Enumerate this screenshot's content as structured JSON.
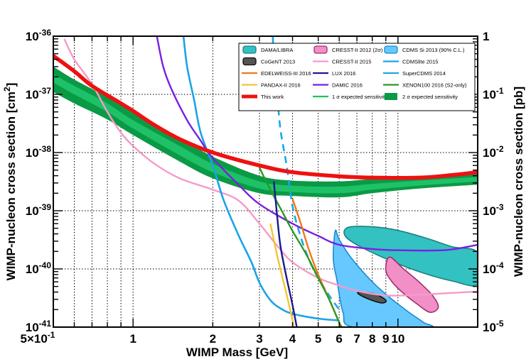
{
  "chart_data": {
    "type": "line",
    "xscale": "log",
    "yscale": "log",
    "xlim": [
      0.5,
      20
    ],
    "ylim_left": [
      1e-41,
      1e-36
    ],
    "ylim_right": [
      1e-05,
      1
    ],
    "xlabel": "WIMP Mass [GeV]",
    "ylabel_left": "WIMP-nucleon cross section [cm",
    "ylabel_left_sup": "2",
    "ylabel_left_end": "]",
    "ylabel_right": "WIMP-nucleon cross section [pb]",
    "x_ticks": [
      {
        "v": 0.5,
        "label": "5×10",
        "sup": "-1"
      },
      {
        "v": 1,
        "label": "1"
      },
      {
        "v": 2,
        "label": "2"
      },
      {
        "v": 3,
        "label": "3"
      },
      {
        "v": 4,
        "label": "4"
      },
      {
        "v": 5,
        "label": "5"
      },
      {
        "v": 6,
        "label": "6"
      },
      {
        "v": 7,
        "label": "7"
      },
      {
        "v": 8,
        "label": "8"
      },
      {
        "v": 9,
        "label": "9"
      },
      {
        "v": 10,
        "label": "10"
      }
    ],
    "y_ticks_left": [
      {
        "v": 1e-36,
        "base": "10",
        "sup": "-36"
      },
      {
        "v": 1e-37,
        "base": "10",
        "sup": "-37"
      },
      {
        "v": 1e-38,
        "base": "10",
        "sup": "-38"
      },
      {
        "v": 1e-39,
        "base": "10",
        "sup": "-39"
      },
      {
        "v": 1e-40,
        "base": "10",
        "sup": "-40"
      },
      {
        "v": 1e-41,
        "base": "10",
        "sup": "-41"
      }
    ],
    "y_ticks_right": [
      {
        "v": 1e-36,
        "base": "1"
      },
      {
        "v": 1e-37,
        "base": "10",
        "sup": "-1"
      },
      {
        "v": 1e-38,
        "base": "10",
        "sup": "-2"
      },
      {
        "v": 1e-39,
        "base": "10",
        "sup": "-3"
      },
      {
        "v": 1e-40,
        "base": "10",
        "sup": "-4"
      },
      {
        "v": 1e-41,
        "base": "10",
        "sup": "-5"
      }
    ],
    "colors": {
      "dama": "#33c1c1",
      "cogent": "#555555",
      "cresst2012": "#f28fc7",
      "cdmssi": "#66c8ff",
      "cresst2015": "#f59ac9",
      "cdmslite": "#1aa3e8",
      "edelweiss": "#f07818",
      "lux": "#1a1a90",
      "supercdms": "#19a8e6",
      "pandax": "#f2c533",
      "damic": "#7a1fe0",
      "xenon100": "#2a9a22",
      "thiswork": "#ee1111",
      "band1": "#1ec167",
      "band2": "#0a9a45"
    },
    "regions": [
      {
        "id": "dama",
        "name": "DAMA/LIBRA",
        "color": "#33c1c1",
        "edge": "#1f8080",
        "points": [
          [
            6.5,
            5.2e-40
          ],
          [
            8,
            5.3e-40
          ],
          [
            10,
            4.6e-40
          ],
          [
            13,
            3.3e-40
          ],
          [
            16,
            2.4e-40
          ],
          [
            20,
            1.9e-40
          ],
          [
            20,
            5.5e-41
          ],
          [
            16,
            6.2e-41
          ],
          [
            12,
            9e-41
          ],
          [
            9,
            1.5e-40
          ],
          [
            7,
            2.6e-40
          ],
          [
            6.3,
            3.8e-40
          ]
        ]
      },
      {
        "id": "cresst2012",
        "name": "CRESST-II 2012 (2σ)",
        "color": "#f28fc7",
        "edge": "#a0306a",
        "points": [
          [
            9.3,
            1.6e-40
          ],
          [
            10.5,
            1e-40
          ],
          [
            12,
            6e-41
          ],
          [
            13.5,
            3.5e-41
          ],
          [
            14.2,
            2.2e-41
          ],
          [
            13.2,
            1.8e-41
          ],
          [
            11.8,
            2.5e-41
          ],
          [
            10.5,
            3.8e-41
          ],
          [
            9.5,
            6e-41
          ],
          [
            9,
            9.5e-41
          ]
        ]
      },
      {
        "id": "cdmssi",
        "name": "CDMS Si 2013 (90% C.L.)",
        "color": "#66c8ff",
        "edge": "#1a8ad0",
        "points": [
          [
            5.8,
            4.5e-40
          ],
          [
            6,
            3.2e-40
          ],
          [
            6.7,
            1.5e-40
          ],
          [
            8,
            6e-41
          ],
          [
            9.5,
            3e-41
          ],
          [
            11,
            1.8e-41
          ],
          [
            12.5,
            1.2e-41
          ],
          [
            13,
            1e-41
          ],
          [
            6.8,
            1e-41
          ],
          [
            6.2,
            1.8e-41
          ],
          [
            5.9,
            6e-41
          ],
          [
            5.7,
            1.5e-40
          ]
        ]
      },
      {
        "id": "cogent",
        "name": "CoGeNT 2013",
        "color": "#555555",
        "edge": "#111111",
        "points": [
          [
            7.2,
            4e-41
          ],
          [
            8.2,
            3.7e-41
          ],
          [
            9,
            2.9e-41
          ],
          [
            8.7,
            2.6e-41
          ],
          [
            7.8,
            3e-41
          ],
          [
            7.1,
            3.7e-41
          ]
        ]
      }
    ],
    "series": [
      {
        "id": "cresst2015",
        "name": "CRESST-II 2015",
        "color": "#f59ac9",
        "width": 2.4,
        "dash": "",
        "points": [
          [
            0.55,
            9e-37
          ],
          [
            0.6,
            4e-37
          ],
          [
            0.7,
            1.5e-37
          ],
          [
            0.8,
            5e-38
          ],
          [
            0.9,
            2.2e-38
          ],
          [
            1.0,
            1.3e-38
          ],
          [
            1.2,
            6.5e-39
          ],
          [
            1.5,
            3.6e-39
          ],
          [
            2.0,
            2.3e-39
          ],
          [
            2.5,
            1.5e-39
          ],
          [
            3.0,
            6e-40
          ],
          [
            3.5,
            2.5e-40
          ],
          [
            4.0,
            1.3e-40
          ],
          [
            5.0,
            7e-41
          ],
          [
            6.0,
            5.2e-41
          ],
          [
            7.0,
            4.2e-41
          ],
          [
            9.0,
            3.5e-41
          ],
          [
            12,
            3.6e-41
          ],
          [
            20,
            4.1e-41
          ]
        ]
      },
      {
        "id": "cdmslite",
        "name": "CDMSlite 2015",
        "color": "#1aa3e8",
        "width": 2.6,
        "dash": "",
        "points": [
          [
            1.55,
            1e-36
          ],
          [
            1.6,
            3e-37
          ],
          [
            1.7,
            8e-38
          ],
          [
            1.8,
            2.2e-38
          ],
          [
            2.0,
            6e-39
          ],
          [
            2.2,
            1.5e-39
          ],
          [
            2.5,
            3.8e-40
          ],
          [
            2.8,
            1.3e-40
          ],
          [
            3.0,
            5.8e-41
          ],
          [
            3.3,
            2.9e-41
          ],
          [
            3.6,
            2.1e-41
          ],
          [
            4.0,
            1.7e-41
          ],
          [
            5.0,
            1.4e-41
          ],
          [
            6.0,
            1.3e-41
          ]
        ]
      },
      {
        "id": "supercdms",
        "name": "SuperCDMS 2014",
        "color": "#19a8e6",
        "width": 2.6,
        "dash": "10,7",
        "points": [
          [
            3.37,
            1e-36
          ],
          [
            3.4,
            4e-37
          ],
          [
            3.5,
            1e-37
          ],
          [
            3.6,
            2.5e-38
          ],
          [
            3.8,
            6e-39
          ],
          [
            4.0,
            1.2e-39
          ],
          [
            4.3,
            3.5e-40
          ],
          [
            4.7,
            1.2e-40
          ],
          [
            5.3,
            4.5e-41
          ],
          [
            6,
            2e-41
          ]
        ]
      },
      {
        "id": "damic",
        "name": "DAMIC 2016",
        "color": "#7a1fe0",
        "width": 2.4,
        "dash": "",
        "points": [
          [
            1.23,
            1e-36
          ],
          [
            1.3,
            3e-37
          ],
          [
            1.4,
            1.2e-37
          ],
          [
            1.6,
            3.6e-38
          ],
          [
            1.8,
            1.6e-38
          ],
          [
            2.0,
            8e-39
          ],
          [
            2.5,
            2.8e-39
          ],
          [
            3.0,
            1.3e-39
          ],
          [
            4.0,
            6e-40
          ],
          [
            5.0,
            3.7e-40
          ],
          [
            6.0,
            2.6e-40
          ],
          [
            8,
            2.2e-40
          ],
          [
            10,
            2.1e-40
          ],
          [
            15,
            2.1e-40
          ],
          [
            20,
            2.6e-40
          ]
        ]
      },
      {
        "id": "edelweiss",
        "name": "EDELWEISS-III 2016",
        "color": "#f07818",
        "width": 2.4,
        "dash": "",
        "points": [
          [
            4.0,
            1.6e-39
          ],
          [
            4.3,
            6e-40
          ],
          [
            4.6,
            2.2e-40
          ],
          [
            5.0,
            8e-41
          ],
          [
            5.5,
            3e-41
          ],
          [
            6.0,
            1.2e-41
          ],
          [
            6.1,
            1e-41
          ]
        ]
      },
      {
        "id": "xenon100",
        "name": "XENON100 2016 (S2-only)",
        "color": "#2a9a22",
        "width": 2.4,
        "dash": "",
        "points": [
          [
            3.0,
            5.5e-39
          ],
          [
            3.3,
            2.3e-39
          ],
          [
            3.6,
            1.1e-39
          ],
          [
            4.0,
            4.5e-40
          ],
          [
            4.5,
            1.8e-40
          ],
          [
            5.0,
            7e-41
          ],
          [
            5.5,
            3e-41
          ],
          [
            6.0,
            1.2e-41
          ],
          [
            6.15,
            1e-41
          ]
        ]
      },
      {
        "id": "lux",
        "name": "LUX 2016",
        "color": "#1a1a90",
        "width": 2.4,
        "dash": "",
        "points": [
          [
            3.4,
            3.2e-39
          ],
          [
            3.5,
            8e-40
          ],
          [
            3.6,
            2.5e-40
          ],
          [
            3.8,
            7e-41
          ],
          [
            4.0,
            2.4e-41
          ],
          [
            4.15,
            1e-41
          ]
        ]
      },
      {
        "id": "pandax",
        "name": "PANDAX-II 2016",
        "color": "#f2c533",
        "width": 2.4,
        "dash": "",
        "points": [
          [
            3.3,
            6e-40
          ],
          [
            3.5,
            1.7e-40
          ],
          [
            3.7,
            6e-41
          ],
          [
            3.9,
            2.2e-41
          ],
          [
            4.05,
            1e-41
          ]
        ]
      },
      {
        "id": "thiswork",
        "name": "This work",
        "color": "#ee1111",
        "width": 5.5,
        "dash": "",
        "points": [
          [
            0.5,
            4.6e-37
          ],
          [
            0.6,
            2.5e-37
          ],
          [
            0.7,
            1.4e-37
          ],
          [
            0.9,
            7e-38
          ],
          [
            1.0,
            5.2e-38
          ],
          [
            1.2,
            3e-38
          ],
          [
            1.5,
            1.7e-38
          ],
          [
            2.0,
            1e-38
          ],
          [
            3.0,
            6e-39
          ],
          [
            4.0,
            4.6e-39
          ],
          [
            6.0,
            3.9e-39
          ],
          [
            8.0,
            3.7e-39
          ],
          [
            12,
            3.7e-39
          ],
          [
            16,
            4.1e-39
          ],
          [
            20,
            4.6e-39
          ]
        ]
      }
    ],
    "bands": {
      "two_sigma_upper": [
        [
          0.5,
          3e-37
        ],
        [
          0.6,
          1.8e-37
        ],
        [
          0.8,
          9e-38
        ],
        [
          1.0,
          5e-38
        ],
        [
          1.5,
          1.8e-38
        ],
        [
          2.0,
          8.5e-39
        ],
        [
          3.0,
          4e-39
        ],
        [
          4.0,
          3.3e-39
        ],
        [
          6.0,
          3.2e-39
        ],
        [
          8.0,
          3.5e-39
        ],
        [
          12,
          3.9e-39
        ],
        [
          20,
          4.3e-39
        ]
      ],
      "one_sigma_upper": [
        [
          0.5,
          2.2e-37
        ],
        [
          0.6,
          1.4e-37
        ],
        [
          0.8,
          7e-38
        ],
        [
          1.0,
          3.6e-38
        ],
        [
          1.5,
          1.3e-38
        ],
        [
          2.0,
          6.4e-39
        ],
        [
          3.0,
          3.2e-39
        ],
        [
          4.0,
          2.7e-39
        ],
        [
          6.0,
          2.6e-39
        ],
        [
          8.0,
          2.9e-39
        ],
        [
          12,
          3.3e-39
        ],
        [
          20,
          3.8e-39
        ]
      ],
      "one_sigma_lower": [
        [
          0.5,
          1.6e-37
        ],
        [
          0.6,
          1e-37
        ],
        [
          0.8,
          5e-38
        ],
        [
          1.0,
          2.6e-38
        ],
        [
          1.5,
          9e-39
        ],
        [
          2.0,
          4.6e-39
        ],
        [
          3.0,
          2.4e-39
        ],
        [
          4.0,
          2.1e-39
        ],
        [
          6.0,
          2e-39
        ],
        [
          8.0,
          2.3e-39
        ],
        [
          12,
          2.7e-39
        ],
        [
          20,
          3.2e-39
        ]
      ],
      "two_sigma_lower": [
        [
          0.5,
          1.1e-37
        ],
        [
          0.6,
          7e-38
        ],
        [
          0.8,
          3.7e-38
        ],
        [
          1.0,
          2e-38
        ],
        [
          1.5,
          7e-39
        ],
        [
          2.0,
          3.6e-39
        ],
        [
          3.0,
          2e-39
        ],
        [
          4.0,
          1.8e-39
        ],
        [
          6.0,
          1.7e-39
        ],
        [
          8.0,
          2e-39
        ],
        [
          12,
          2.4e-39
        ],
        [
          20,
          2.8e-39
        ]
      ]
    },
    "legend": {
      "placement": "top-right",
      "entries": [
        {
          "name": "DAMA/LIBRA",
          "type": "box",
          "color": "#33c1c1",
          "edge": "#1f8080"
        },
        {
          "name": "CRESST-II 2012 (2σ)",
          "type": "box",
          "color": "#f28fc7",
          "edge": "#a0306a"
        },
        {
          "name": "CDMS Si 2013 (90% C.L.)",
          "type": "box",
          "color": "#66c8ff",
          "edge": "#1a8ad0"
        },
        {
          "name": "CoGeNT 2013",
          "type": "box",
          "color": "#555555",
          "edge": "#111111"
        },
        {
          "name": "CRESST-II 2015",
          "type": "line",
          "color": "#f59ac9"
        },
        {
          "name": "CDMSlite 2015",
          "type": "line",
          "color": "#1aa3e8"
        },
        {
          "name": "EDELWEISS-III 2016",
          "type": "line",
          "color": "#f07818"
        },
        {
          "name": "LUX 2016",
          "type": "line",
          "color": "#1a1a90"
        },
        {
          "name": "SuperCDMS 2014",
          "type": "line",
          "color": "#19a8e6"
        },
        {
          "name": "PANDAX-II 2016",
          "type": "line",
          "color": "#f2c533"
        },
        {
          "name": "DAMIC 2016",
          "type": "line",
          "color": "#7a1fe0"
        },
        {
          "name": "XENON100 2016 (S2-only)",
          "type": "line",
          "color": "#2a9a22"
        },
        {
          "name": "This work",
          "type": "thickline",
          "color": "#ee1111"
        },
        {
          "name": "1 σ expected sensitivity",
          "type": "line",
          "color": "#1ec167"
        },
        {
          "name": "2 σ expected sensitivity",
          "type": "fill",
          "color": "#0a9a45"
        }
      ]
    }
  }
}
